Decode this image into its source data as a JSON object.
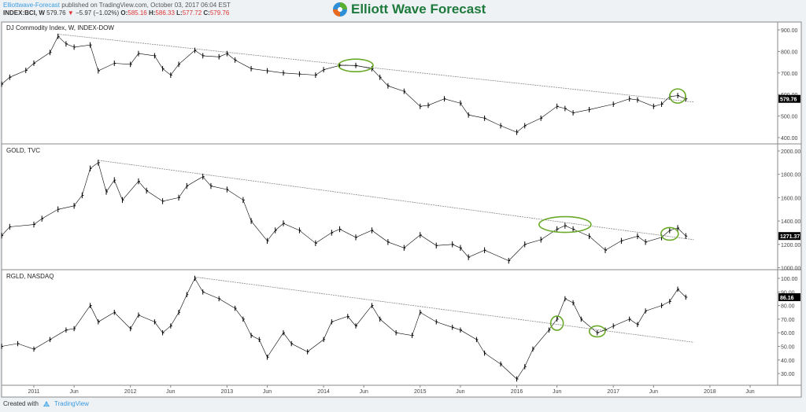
{
  "header": {
    "author": "Elliottwave-Forecast",
    "published": "published on TradingView.com, October 03, 2017 06:04 EST",
    "symbol": "INDEX:BCI, W",
    "last": "579.76",
    "change": "−5.97 (−1.02%)",
    "o_label": "O:",
    "o": "585.16",
    "h_label": "H:",
    "h": "586.33",
    "l_label": "L:",
    "l": "577.72",
    "c_label": "C:",
    "c": "579.76"
  },
  "logo": {
    "text": "Elliott Wave Forecast"
  },
  "footer": {
    "created_with": "Created with",
    "brand": "TradingView"
  },
  "colors": {
    "bars": "#000000",
    "trendline": "#888888",
    "ellipse": "#6aaa2a",
    "down": "#d33333",
    "link": "#3a9be0",
    "brand": "#1e7a3c"
  },
  "chart_data": [
    {
      "type": "ohlc",
      "title": "DJ Commodity Index, W, INDEX-DOW",
      "last_label": "579.76",
      "ylim": [
        400,
        900
      ],
      "y_ticks": [
        "900.00",
        "800.00",
        "700.00",
        "600.00",
        "500.00",
        "400.00"
      ],
      "y_tick_values": [
        900,
        800,
        700,
        600,
        500,
        400
      ],
      "x": [
        "2010-09",
        "2010-10",
        "2010-12",
        "2011-01",
        "2011-03",
        "2011-04",
        "2011-05",
        "2011-06",
        "2011-08",
        "2011-09",
        "2011-11",
        "2012-01",
        "2012-02",
        "2012-04",
        "2012-05",
        "2012-06",
        "2012-07",
        "2012-09",
        "2012-10",
        "2012-12",
        "2013-01",
        "2013-02",
        "2013-04",
        "2013-06",
        "2013-08",
        "2013-10",
        "2013-12",
        "2014-01",
        "2014-03",
        "2014-05",
        "2014-07",
        "2014-08",
        "2014-09",
        "2014-11",
        "2015-01",
        "2015-02",
        "2015-04",
        "2015-06",
        "2015-07",
        "2015-09",
        "2015-11",
        "2016-01",
        "2016-02",
        "2016-04",
        "2016-06",
        "2016-07",
        "2016-08",
        "2016-10",
        "2017-01",
        "2017-03",
        "2017-04",
        "2017-06",
        "2017-07",
        "2017-08",
        "2017-09",
        "2017-10"
      ],
      "close": [
        648,
        680,
        712,
        745,
        795,
        870,
        835,
        820,
        830,
        710,
        745,
        740,
        790,
        780,
        720,
        690,
        740,
        805,
        780,
        775,
        790,
        760,
        720,
        710,
        700,
        695,
        690,
        715,
        735,
        735,
        720,
        680,
        640,
        615,
        545,
        550,
        580,
        560,
        505,
        490,
        455,
        425,
        455,
        490,
        545,
        535,
        515,
        530,
        555,
        580,
        575,
        545,
        555,
        590,
        595,
        579.76
      ],
      "trendline": [
        [
          "2011-04",
          880
        ],
        [
          "2017-11",
          565
        ]
      ],
      "ellipses": [
        [
          "2014-05",
          735
        ],
        [
          "2017-09",
          593
        ]
      ]
    },
    {
      "type": "ohlc",
      "title": "GOLD, TVC",
      "last_label": "1271.37",
      "ylim": [
        1000,
        2000
      ],
      "y_ticks": [
        "2000.00",
        "1800.00",
        "1600.00",
        "1400.00",
        "1200.00",
        "1000.00"
      ],
      "y_tick_values": [
        2000,
        1800,
        1600,
        1400,
        1200,
        1000
      ],
      "x": [
        "2010-09",
        "2010-10",
        "2011-01",
        "2011-02",
        "2011-04",
        "2011-06",
        "2011-07",
        "2011-08",
        "2011-09",
        "2011-10",
        "2011-11",
        "2011-12",
        "2012-02",
        "2012-03",
        "2012-05",
        "2012-07",
        "2012-08",
        "2012-10",
        "2012-11",
        "2013-01",
        "2013-03",
        "2013-04",
        "2013-06",
        "2013-07",
        "2013-08",
        "2013-10",
        "2013-12",
        "2014-02",
        "2014-03",
        "2014-05",
        "2014-07",
        "2014-09",
        "2014-11",
        "2015-01",
        "2015-03",
        "2015-05",
        "2015-06",
        "2015-07",
        "2015-09",
        "2015-12",
        "2016-02",
        "2016-04",
        "2016-06",
        "2016-07",
        "2016-08",
        "2016-10",
        "2016-12",
        "2017-02",
        "2017-04",
        "2017-05",
        "2017-07",
        "2017-08",
        "2017-09",
        "2017-10"
      ],
      "close": [
        1275,
        1350,
        1370,
        1420,
        1500,
        1530,
        1620,
        1850,
        1900,
        1650,
        1750,
        1580,
        1740,
        1660,
        1570,
        1600,
        1700,
        1780,
        1700,
        1670,
        1580,
        1400,
        1230,
        1320,
        1380,
        1320,
        1210,
        1300,
        1330,
        1260,
        1320,
        1220,
        1170,
        1280,
        1190,
        1200,
        1170,
        1090,
        1150,
        1060,
        1200,
        1240,
        1330,
        1360,
        1330,
        1270,
        1150,
        1230,
        1270,
        1220,
        1260,
        1320,
        1340,
        1271.37
      ],
      "trendline": [
        [
          "2011-09",
          1920
        ],
        [
          "2017-11",
          1240
        ]
      ],
      "ellipses": [
        [
          "2016-07",
          1370
        ],
        [
          "2017-08",
          1290
        ]
      ]
    },
    {
      "type": "ohlc",
      "title": "RGLD, NASDAQ",
      "last_label": "86.16",
      "ylim": [
        25,
        100
      ],
      "y_ticks": [
        "100.00",
        "90.00",
        "80.00",
        "70.00",
        "60.00",
        "50.00",
        "40.00",
        "30.00"
      ],
      "y_tick_values": [
        100,
        90,
        80,
        70,
        60,
        50,
        40,
        30
      ],
      "x": [
        "2010-09",
        "2010-11",
        "2011-01",
        "2011-03",
        "2011-05",
        "2011-06",
        "2011-08",
        "2011-09",
        "2011-11",
        "2012-01",
        "2012-02",
        "2012-04",
        "2012-05",
        "2012-06",
        "2012-07",
        "2012-08",
        "2012-09",
        "2012-10",
        "2012-12",
        "2013-02",
        "2013-03",
        "2013-04",
        "2013-05",
        "2013-06",
        "2013-08",
        "2013-09",
        "2013-11",
        "2014-01",
        "2014-02",
        "2014-04",
        "2014-05",
        "2014-07",
        "2014-08",
        "2014-10",
        "2014-12",
        "2015-01",
        "2015-03",
        "2015-05",
        "2015-06",
        "2015-08",
        "2015-09",
        "2015-11",
        "2016-01",
        "2016-02",
        "2016-03",
        "2016-05",
        "2016-06",
        "2016-07",
        "2016-08",
        "2016-09",
        "2016-11",
        "2016-12",
        "2017-01",
        "2017-03",
        "2017-04",
        "2017-05",
        "2017-07",
        "2017-08",
        "2017-09",
        "2017-10"
      ],
      "close": [
        50,
        52,
        48,
        55,
        62,
        63,
        80,
        68,
        75,
        63,
        73,
        68,
        60,
        65,
        75,
        88,
        100,
        90,
        85,
        78,
        70,
        58,
        55,
        42,
        60,
        52,
        46,
        55,
        68,
        72,
        65,
        80,
        70,
        60,
        58,
        75,
        68,
        64,
        62,
        55,
        45,
        37,
        26,
        35,
        48,
        62,
        70,
        85,
        82,
        70,
        60,
        62,
        65,
        70,
        66,
        76,
        80,
        83,
        92,
        86.16
      ],
      "trendline": [
        [
          "2012-09",
          101
        ],
        [
          "2017-11",
          53
        ]
      ],
      "ellipses": [
        [
          "2016-06",
          67
        ],
        [
          "2016-11",
          61
        ]
      ]
    }
  ],
  "x_axis": {
    "ticks": [
      "2011",
      "Jun",
      "2012",
      "Jun",
      "2013",
      "Jun",
      "2014",
      "Jun",
      "2015",
      "Jun",
      "2016",
      "Jun",
      "2017",
      "Jun",
      "2018",
      "Jun"
    ],
    "tick_dates": [
      "2011-01",
      "2011-06",
      "2012-01",
      "2012-06",
      "2013-01",
      "2013-06",
      "2014-01",
      "2014-06",
      "2015-01",
      "2015-06",
      "2016-01",
      "2016-06",
      "2017-01",
      "2017-06",
      "2018-01",
      "2018-06"
    ]
  }
}
